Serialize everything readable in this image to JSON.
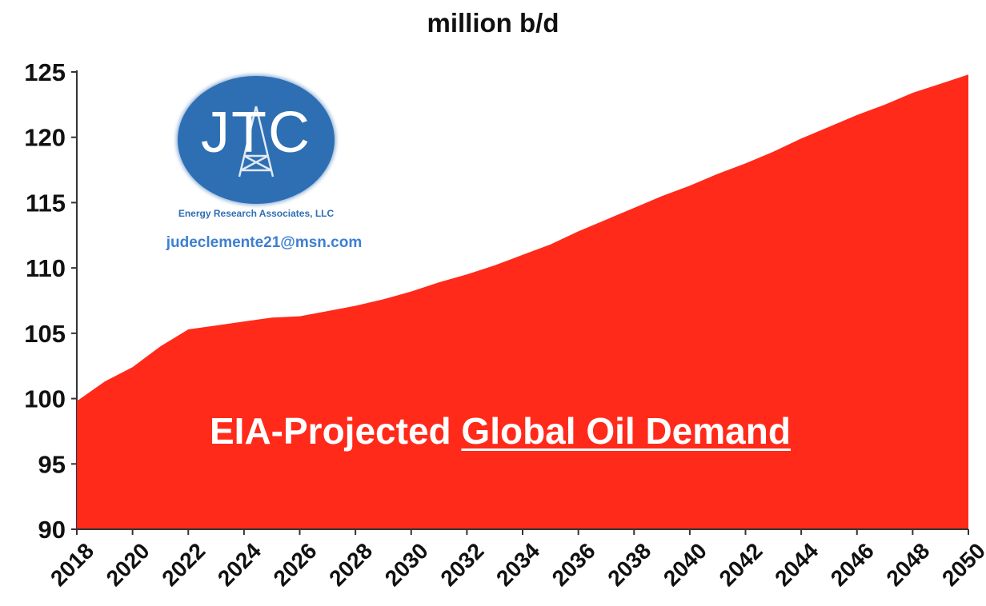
{
  "chart_data": {
    "type": "area",
    "title_plain": "EIA-Projected ",
    "title_underlined": "Global Oil Demand",
    "ylabel": "million b/d",
    "ylim": [
      90,
      125
    ],
    "yticks": [
      90,
      95,
      100,
      105,
      110,
      115,
      120,
      125
    ],
    "xlim": [
      2018,
      2050
    ],
    "xticks": [
      2018,
      2020,
      2022,
      2024,
      2026,
      2028,
      2030,
      2032,
      2034,
      2036,
      2038,
      2040,
      2042,
      2044,
      2046,
      2048,
      2050
    ],
    "grid": false,
    "series": [
      {
        "color": "#ff2a1a",
        "x": [
          2018,
          2019,
          2020,
          2021,
          2022,
          2023,
          2024,
          2025,
          2026,
          2027,
          2028,
          2029,
          2030,
          2031,
          2032,
          2033,
          2034,
          2035,
          2036,
          2037,
          2038,
          2039,
          2040,
          2041,
          2042,
          2043,
          2044,
          2045,
          2046,
          2047,
          2048,
          2049,
          2050
        ],
        "values": [
          99.8,
          101.3,
          102.4,
          104.0,
          105.3,
          105.6,
          105.9,
          106.2,
          106.3,
          106.7,
          107.1,
          107.6,
          108.2,
          108.9,
          109.5,
          110.2,
          111.0,
          111.8,
          112.8,
          113.7,
          114.6,
          115.5,
          116.3,
          117.2,
          118.0,
          118.9,
          119.9,
          120.8,
          121.7,
          122.5,
          123.4,
          124.1,
          124.8
        ]
      }
    ]
  },
  "logo": {
    "letters": "JTC",
    "subtitle": "Energy Research Associates, LLC",
    "email": "judeclemente21@msn.com",
    "color": "#2e6fb3"
  }
}
